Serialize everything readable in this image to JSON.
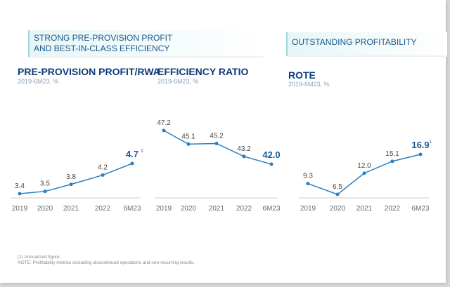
{
  "banners": {
    "left": "STRONG PRE-PROVISION PROFIT\nAND BEST-IN-CLASS EFFICIENCY",
    "right": "OUTSTANDING PROFITABILITY"
  },
  "chart_data": [
    {
      "type": "line",
      "title": "PRE-PROVISION PROFIT/RWA",
      "subtitle": "2019-6M23, %",
      "categories": [
        "2019",
        "2020",
        "2021",
        "2022",
        "6M23"
      ],
      "values": [
        3.4,
        3.5,
        3.8,
        4.2,
        4.7
      ],
      "labels": [
        "3.4",
        "3.5",
        "3.8",
        "4.2",
        "4.7"
      ],
      "last_footnote": "1",
      "color": "#2a7fc0"
    },
    {
      "type": "line",
      "title": "EFFICIENCY RATIO",
      "subtitle": "2019-6M23, %",
      "categories": [
        "2019",
        "2020",
        "2021",
        "2022",
        "6M23"
      ],
      "values": [
        47.2,
        45.1,
        45.2,
        43.2,
        42.0
      ],
      "labels": [
        "47.2",
        "45.1",
        "45.2",
        "43.2",
        "42.0"
      ],
      "last_footnote": "",
      "color": "#2a7fc0"
    },
    {
      "type": "line",
      "title": "ROTE",
      "subtitle": "2019-6M23, %",
      "categories": [
        "2019",
        "2020",
        "2021",
        "2022",
        "6M23"
      ],
      "values": [
        9.3,
        6.5,
        12.0,
        15.1,
        16.9
      ],
      "labels": [
        "9.3",
        "6.5",
        "12.0",
        "15.1",
        "16.9"
      ],
      "last_footnote": "1",
      "color": "#2a7fc0"
    }
  ],
  "notes": {
    "line1": "(1) Annualized figure.",
    "line2": "NOTE: Profitability metrics excluding discontinued operations and non-recurring results."
  }
}
